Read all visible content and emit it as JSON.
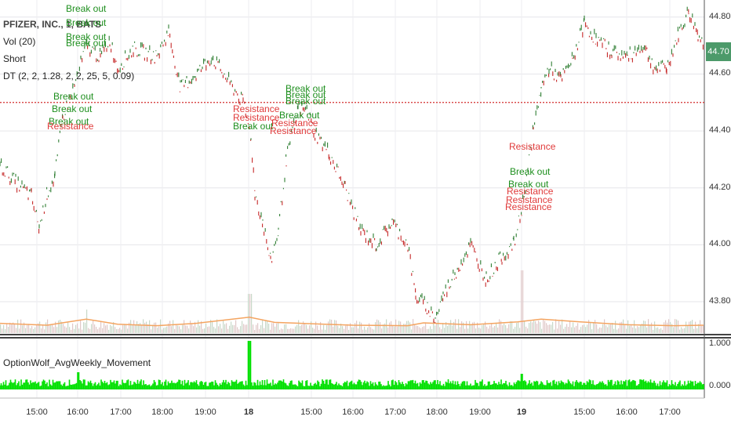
{
  "chart_data": {
    "type": "line",
    "title": "PFIZER, INC., 1, BATS",
    "legend": [
      "Vol (20)",
      "Short",
      "DT (2, 2, 1.28, 2, 2, 25, 5, 0.09)"
    ],
    "price_axis": {
      "ticks": [
        "44.80",
        "44.60",
        "44.40",
        "44.20",
        "44.00",
        "43.80"
      ],
      "ylim": [
        43.69,
        44.86
      ]
    },
    "current_price": "44.70",
    "resistance_level": 44.5,
    "time_labels": [
      {
        "label": "15:00",
        "bold": false
      },
      {
        "label": "16:00",
        "bold": false
      },
      {
        "label": "17:00",
        "bold": false
      },
      {
        "label": "18:00",
        "bold": false
      },
      {
        "label": "19:00",
        "bold": false
      },
      {
        "label": "18",
        "bold": true
      },
      {
        "label": "15:00",
        "bold": false
      },
      {
        "label": "16:00",
        "bold": false
      },
      {
        "label": "17:00",
        "bold": false
      },
      {
        "label": "18:00",
        "bold": false
      },
      {
        "label": "19:00",
        "bold": false
      },
      {
        "label": "19",
        "bold": true
      },
      {
        "label": "15:00",
        "bold": false
      },
      {
        "label": "16:00",
        "bold": false
      },
      {
        "label": "17:00",
        "bold": false
      }
    ],
    "price_path": [
      [
        0,
        44.28
      ],
      [
        20,
        44.22
      ],
      [
        40,
        44.17
      ],
      [
        50,
        44.06
      ],
      [
        60,
        44.18
      ],
      [
        70,
        44.24
      ],
      [
        80,
        44.45
      ],
      [
        95,
        44.56
      ],
      [
        110,
        44.7
      ],
      [
        128,
        44.66
      ],
      [
        140,
        44.72
      ],
      [
        150,
        44.62
      ],
      [
        170,
        44.69
      ],
      [
        200,
        44.66
      ],
      [
        215,
        44.75
      ],
      [
        230,
        44.55
      ],
      [
        250,
        44.6
      ],
      [
        270,
        44.66
      ],
      [
        290,
        44.58
      ],
      [
        310,
        44.5
      ],
      [
        320,
        44.38
      ],
      [
        325,
        44.18
      ],
      [
        335,
        44.08
      ],
      [
        345,
        43.94
      ],
      [
        355,
        44.05
      ],
      [
        365,
        44.3
      ],
      [
        380,
        44.48
      ],
      [
        392,
        44.47
      ],
      [
        400,
        44.4
      ],
      [
        420,
        44.32
      ],
      [
        440,
        44.2
      ],
      [
        460,
        44.05
      ],
      [
        480,
        44.0
      ],
      [
        500,
        44.08
      ],
      [
        520,
        44.0
      ],
      [
        530,
        43.82
      ],
      [
        545,
        43.78
      ],
      [
        555,
        43.74
      ],
      [
        565,
        43.82
      ],
      [
        580,
        43.9
      ],
      [
        600,
        44.0
      ],
      [
        620,
        43.88
      ],
      [
        640,
        43.96
      ],
      [
        655,
        44.0
      ],
      [
        665,
        44.12
      ],
      [
        680,
        44.4
      ],
      [
        690,
        44.55
      ],
      [
        700,
        44.62
      ],
      [
        715,
        44.58
      ],
      [
        730,
        44.65
      ],
      [
        745,
        44.78
      ],
      [
        760,
        44.72
      ],
      [
        780,
        44.68
      ],
      [
        800,
        44.66
      ],
      [
        820,
        44.7
      ],
      [
        835,
        44.62
      ],
      [
        850,
        44.62
      ],
      [
        865,
        44.74
      ],
      [
        878,
        44.82
      ],
      [
        890,
        44.74
      ],
      [
        897,
        44.7
      ]
    ],
    "volume_ma_path": [
      [
        0,
        0.9
      ],
      [
        60,
        0.5
      ],
      [
        110,
        1.8
      ],
      [
        150,
        0.7
      ],
      [
        200,
        0.4
      ],
      [
        250,
        0.9
      ],
      [
        318,
        2.2
      ],
      [
        350,
        1.1
      ],
      [
        400,
        0.8
      ],
      [
        450,
        0.5
      ],
      [
        520,
        0.4
      ],
      [
        540,
        1.0
      ],
      [
        600,
        0.6
      ],
      [
        660,
        1.2
      ],
      [
        690,
        1.8
      ],
      [
        740,
        1.2
      ],
      [
        800,
        0.6
      ],
      [
        860,
        0.4
      ],
      [
        897,
        0.5
      ]
    ],
    "sub_indicator": {
      "name": "OptionWolf_AvgWeekly_Movement",
      "ticks": [
        "1.0000",
        "0.0000"
      ],
      "ylim": [
        0,
        1
      ]
    },
    "annotations": [
      {
        "text": "Break out",
        "color": "green",
        "x": 84,
        "y": 4
      },
      {
        "text": "Break out",
        "color": "green",
        "x": 84,
        "y": 22
      },
      {
        "text": "Break out",
        "color": "green",
        "x": 84,
        "y": 40
      },
      {
        "text": "Break out",
        "color": "green",
        "x": 84,
        "y": 48
      },
      {
        "text": "Break out",
        "color": "green",
        "x": 68,
        "y": 116
      },
      {
        "text": "Break out",
        "color": "green",
        "x": 66,
        "y": 132
      },
      {
        "text": "Break out",
        "color": "green",
        "x": 62,
        "y": 148
      },
      {
        "text": "Resistance",
        "color": "red",
        "x": 60,
        "y": 154
      },
      {
        "text": "Resistance",
        "color": "red",
        "x": 297,
        "y": 132
      },
      {
        "text": "Resistance",
        "color": "red",
        "x": 297,
        "y": 143
      },
      {
        "text": "Break out",
        "color": "green",
        "x": 297,
        "y": 154
      },
      {
        "text": "Break out",
        "color": "green",
        "x": 364,
        "y": 106
      },
      {
        "text": "Break out",
        "color": "green",
        "x": 364,
        "y": 114
      },
      {
        "text": "Break out",
        "color": "green",
        "x": 364,
        "y": 122
      },
      {
        "text": "Break out",
        "color": "green",
        "x": 356,
        "y": 140
      },
      {
        "text": "Resistance",
        "color": "red",
        "x": 346,
        "y": 150
      },
      {
        "text": "Resistance",
        "color": "red",
        "x": 344,
        "y": 160
      },
      {
        "text": "Resistance",
        "color": "red",
        "x": 649,
        "y": 180
      },
      {
        "text": "Break out",
        "color": "green",
        "x": 650,
        "y": 212
      },
      {
        "text": "Break out",
        "color": "green",
        "x": 648,
        "y": 228
      },
      {
        "text": "Resistance",
        "color": "red",
        "x": 646,
        "y": 237
      },
      {
        "text": "Resistance",
        "color": "red",
        "x": 645,
        "y": 248
      },
      {
        "text": "Resistance",
        "color": "red",
        "x": 644,
        "y": 257
      }
    ],
    "colors": {
      "up": "#2e7d32",
      "down": "#c62828",
      "resistance": "#d32f2f",
      "volume": "#b0b0b0",
      "volume_ma": "#f4a460",
      "indicator": "#00e000"
    }
  }
}
